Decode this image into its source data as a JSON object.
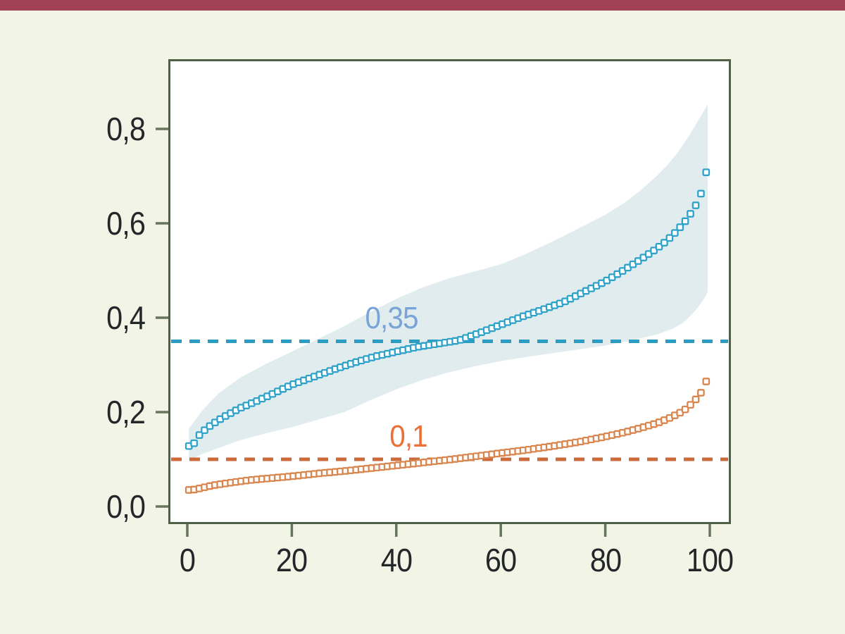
{
  "page": {
    "background_color": "#F2F4E6",
    "top_bar_color": "#A04253"
  },
  "chart_data": {
    "type": "scatter",
    "title": "",
    "xlabel": "",
    "ylabel": "",
    "grid": false,
    "legend": "none",
    "decimal_separator": ",",
    "xlim": [
      -3.5,
      104
    ],
    "ylim": [
      -0.04,
      0.95
    ],
    "x_tick_labels": [
      "0",
      "20",
      "40",
      "60",
      "80",
      "100"
    ],
    "x_tick_values": [
      0,
      20,
      40,
      60,
      80,
      100
    ],
    "y_tick_labels": [
      "0,0",
      "0,2",
      "0,4",
      "0,6",
      "0,8"
    ],
    "y_tick_values": [
      0.0,
      0.2,
      0.4,
      0.6,
      0.8
    ],
    "axis": {
      "plot_bg": "#FFFFFF",
      "frame_color": "#4E6046",
      "tick_color": "#66755C",
      "label_color": "#24272A"
    },
    "band": {
      "name": "upper-series-confidence-band",
      "color": "#DDE9EC",
      "opacity": 0.88,
      "upper_anchors": [
        [
          0.3,
          0.165
        ],
        [
          3,
          0.205
        ],
        [
          6,
          0.24
        ],
        [
          10,
          0.272
        ],
        [
          15,
          0.302
        ],
        [
          20,
          0.328
        ],
        [
          25,
          0.355
        ],
        [
          30,
          0.382
        ],
        [
          35,
          0.412
        ],
        [
          40,
          0.44
        ],
        [
          45,
          0.464
        ],
        [
          50,
          0.483
        ],
        [
          55,
          0.498
        ],
        [
          60,
          0.513
        ],
        [
          65,
          0.536
        ],
        [
          70,
          0.562
        ],
        [
          75,
          0.59
        ],
        [
          80,
          0.618
        ],
        [
          84,
          0.646
        ],
        [
          87,
          0.672
        ],
        [
          90,
          0.702
        ],
        [
          92,
          0.725
        ],
        [
          94,
          0.752
        ],
        [
          96,
          0.785
        ],
        [
          98,
          0.822
        ],
        [
          99.6,
          0.852
        ]
      ],
      "lower_anchors": [
        [
          0.3,
          0.098
        ],
        [
          3,
          0.112
        ],
        [
          6,
          0.124
        ],
        [
          10,
          0.14
        ],
        [
          15,
          0.155
        ],
        [
          20,
          0.168
        ],
        [
          25,
          0.184
        ],
        [
          30,
          0.2
        ],
        [
          35,
          0.225
        ],
        [
          40,
          0.248
        ],
        [
          45,
          0.268
        ],
        [
          50,
          0.284
        ],
        [
          55,
          0.297
        ],
        [
          60,
          0.308
        ],
        [
          65,
          0.317
        ],
        [
          70,
          0.325
        ],
        [
          75,
          0.333
        ],
        [
          80,
          0.341
        ],
        [
          85,
          0.352
        ],
        [
          90,
          0.365
        ],
        [
          93,
          0.377
        ],
        [
          95,
          0.39
        ],
        [
          97,
          0.412
        ],
        [
          98,
          0.426
        ],
        [
          99,
          0.442
        ],
        [
          99.6,
          0.455
        ]
      ]
    },
    "series": [
      {
        "name": "upper-series",
        "marker": "open-square",
        "color": "#2EA2C8",
        "n_points": 100,
        "x_start": 0.3,
        "x_end": 99.3,
        "anchors": [
          [
            1,
            0.128
          ],
          [
            2,
            0.148
          ],
          [
            3,
            0.159
          ],
          [
            4,
            0.168
          ],
          [
            5,
            0.176
          ],
          [
            7,
            0.19
          ],
          [
            10,
            0.208
          ],
          [
            13,
            0.222
          ],
          [
            16,
            0.237
          ],
          [
            20,
            0.258
          ],
          [
            24,
            0.274
          ],
          [
            28,
            0.29
          ],
          [
            32,
            0.305
          ],
          [
            36,
            0.318
          ],
          [
            40,
            0.328
          ],
          [
            44,
            0.338
          ],
          [
            48,
            0.345
          ],
          [
            52,
            0.352
          ],
          [
            56,
            0.368
          ],
          [
            60,
            0.385
          ],
          [
            64,
            0.402
          ],
          [
            68,
            0.417
          ],
          [
            72,
            0.433
          ],
          [
            76,
            0.455
          ],
          [
            80,
            0.477
          ],
          [
            83,
            0.497
          ],
          [
            86,
            0.518
          ],
          [
            89,
            0.54
          ],
          [
            91,
            0.556
          ],
          [
            93,
            0.576
          ],
          [
            95,
            0.6
          ],
          [
            96,
            0.615
          ],
          [
            97,
            0.632
          ],
          [
            98,
            0.652
          ],
          [
            99,
            0.688
          ],
          [
            100,
            0.755
          ]
        ]
      },
      {
        "name": "lower-series",
        "marker": "open-square",
        "color": "#D8864E",
        "n_points": 100,
        "x_start": 0.3,
        "x_end": 99.3,
        "anchors": [
          [
            1,
            0.035
          ],
          [
            3,
            0.04
          ],
          [
            5,
            0.045
          ],
          [
            8,
            0.05
          ],
          [
            12,
            0.056
          ],
          [
            16,
            0.06
          ],
          [
            20,
            0.064
          ],
          [
            25,
            0.07
          ],
          [
            30,
            0.075
          ],
          [
            35,
            0.081
          ],
          [
            40,
            0.087
          ],
          [
            45,
            0.093
          ],
          [
            50,
            0.099
          ],
          [
            55,
            0.106
          ],
          [
            60,
            0.113
          ],
          [
            65,
            0.12
          ],
          [
            70,
            0.128
          ],
          [
            75,
            0.137
          ],
          [
            80,
            0.148
          ],
          [
            84,
            0.158
          ],
          [
            87,
            0.167
          ],
          [
            90,
            0.177
          ],
          [
            92,
            0.186
          ],
          [
            94,
            0.197
          ],
          [
            95,
            0.203
          ],
          [
            96,
            0.212
          ],
          [
            97,
            0.223
          ],
          [
            98,
            0.236
          ],
          [
            99,
            0.253
          ],
          [
            100,
            0.293
          ]
        ]
      }
    ],
    "reference_lines": [
      {
        "value": 0.35,
        "label": "0,35",
        "line_color": "#2B9DC2",
        "label_color": "#79A4D8",
        "label_x": 39.1,
        "label_y": 0.399
      },
      {
        "value": 0.1,
        "label": "0,1",
        "line_color": "#CD6A3A",
        "label_color": "#EC7036",
        "label_x": 42.3,
        "label_y": 0.148
      }
    ]
  }
}
